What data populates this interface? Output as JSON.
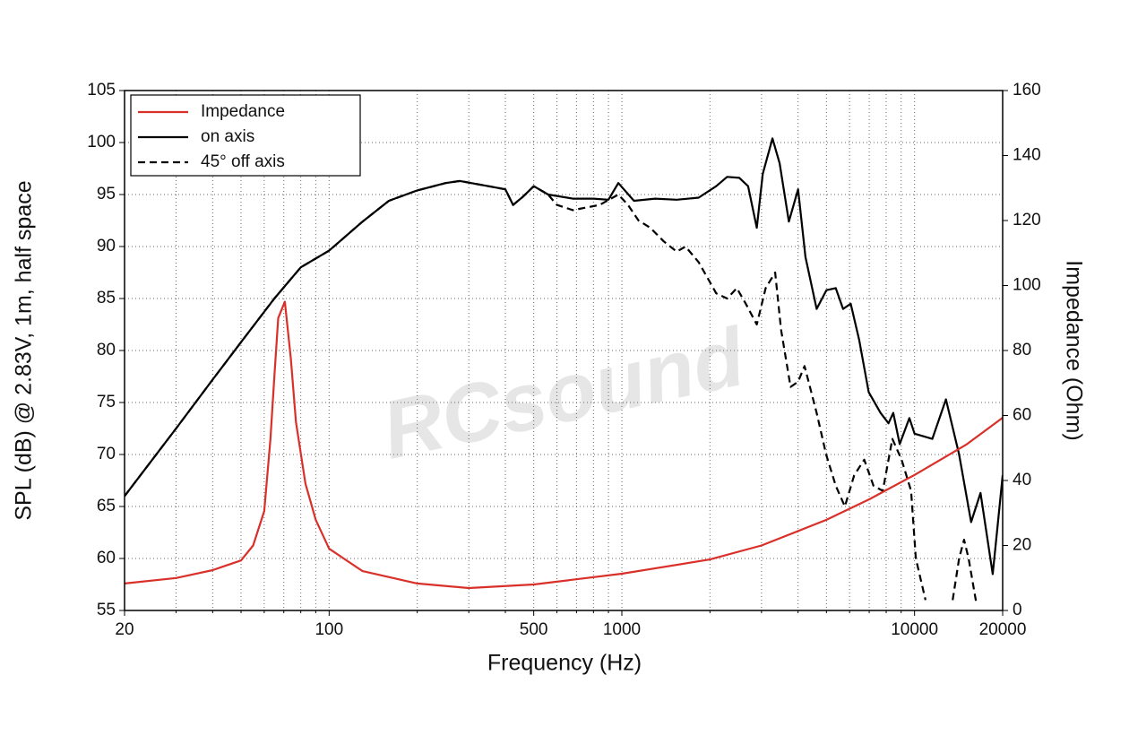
{
  "chart_data": {
    "type": "line",
    "xlabel": "Frequency (Hz)",
    "ylabel": "SPL (dB) @ 2.83V, 1m, half space",
    "y2label": "Impedance (Ohm)",
    "watermark": "RCsound",
    "xscale": "log",
    "xlim": [
      20,
      20000
    ],
    "xticks": [
      20,
      100,
      500,
      1000,
      10000,
      20000
    ],
    "xminorticks": [
      30,
      40,
      50,
      60,
      70,
      80,
      90,
      200,
      300,
      400,
      600,
      700,
      800,
      900,
      2000,
      3000,
      4000,
      5000,
      6000,
      7000,
      8000,
      9000
    ],
    "ylim": [
      55,
      105
    ],
    "yticks": [
      55,
      60,
      65,
      70,
      75,
      80,
      85,
      90,
      95,
      100,
      105
    ],
    "y2lim": [
      0,
      160
    ],
    "y2ticks": [
      0,
      20,
      40,
      60,
      80,
      100,
      120,
      140,
      160
    ],
    "grid": true,
    "legend": "upper left",
    "series": [
      {
        "name": "Impedance",
        "color": "#d9302a",
        "axis": "y2",
        "dash": false,
        "x": [
          20,
          30,
          40,
          50,
          55,
          60,
          63,
          65,
          67,
          70.6,
          74,
          77,
          83,
          90,
          100,
          130,
          200,
          300,
          500,
          1000,
          2000,
          3000,
          5000,
          7000,
          10000,
          15000,
          20000
        ],
        "values": [
          8.3,
          10,
          12.4,
          15.4,
          20,
          30.6,
          52.7,
          72,
          90,
          95,
          77.5,
          58,
          39,
          27.9,
          19,
          12.1,
          8.3,
          6.9,
          8,
          11.3,
          15.7,
          20,
          27.9,
          34.2,
          41.7,
          51,
          59.3
        ]
      },
      {
        "name": "on axis",
        "color": "#000000",
        "dash": false,
        "x": [
          20,
          30,
          40,
          50,
          65,
          80,
          100,
          130,
          160,
          200,
          250,
          280,
          350,
          400,
          425,
          460,
          500,
          560,
          680,
          800,
          900,
          973,
          1100,
          1300,
          1540,
          1830,
          2100,
          2290,
          2520,
          2700,
          2890,
          3030,
          3270,
          3460,
          3720,
          4000,
          4240,
          4630,
          5000,
          5380,
          5700,
          6050,
          6470,
          6970,
          7650,
          8150,
          8460,
          8900,
          9600,
          10000,
          11500,
          12800,
          14200,
          15600,
          16800,
          18500,
          19200,
          20000
        ],
        "values": [
          66,
          72.5,
          77.2,
          80.8,
          85,
          88,
          89.6,
          92.4,
          94.4,
          95.4,
          96.1,
          96.3,
          95.8,
          95.5,
          94,
          94.8,
          95.8,
          95,
          94.6,
          94.6,
          94.5,
          96.1,
          94.4,
          94.6,
          94.5,
          94.7,
          95.8,
          96.7,
          96.6,
          95.8,
          91.8,
          97,
          100.4,
          98,
          92.4,
          95.5,
          89,
          84,
          85.8,
          86,
          84,
          84.5,
          81,
          76,
          74,
          73,
          74,
          71,
          73.5,
          72,
          71.5,
          75.3,
          70,
          63.5,
          66.3,
          58.5,
          63,
          68
        ]
      },
      {
        "name": "45° off axis",
        "color": "#000000",
        "dash": true,
        "x": [
          20,
          30,
          40,
          50,
          65,
          80,
          100,
          130,
          160,
          200,
          250,
          280,
          350,
          400,
          425,
          460,
          500,
          560,
          600,
          680,
          840,
          973,
          1050,
          1140,
          1250,
          1390,
          1540,
          1650,
          1830,
          2100,
          2290,
          2470,
          2650,
          2890,
          3100,
          3340,
          3500,
          3770,
          4000,
          4210,
          4630,
          4990,
          5380,
          5780,
          6220,
          6730,
          7240,
          7790,
          8400,
          9030,
          9730,
          10100,
          10900,
          12000,
          13500,
          14200,
          14760,
          15300,
          16300
        ],
        "values": [
          66,
          72.5,
          77.2,
          80.8,
          85,
          88,
          89.6,
          92.4,
          94.4,
          95.4,
          96.1,
          96.3,
          95.8,
          95.5,
          94,
          94.8,
          95.8,
          95,
          94,
          93.5,
          94,
          95,
          94,
          92.5,
          91.8,
          90.5,
          89.5,
          90,
          88.5,
          85.5,
          85,
          86,
          84.5,
          82.5,
          86,
          87.5,
          82,
          76.5,
          77,
          78.5,
          74,
          70,
          67,
          65,
          68,
          69.5,
          67,
          66.5,
          71.5,
          69.5,
          66.5,
          60,
          56,
          null,
          56,
          60,
          61.8,
          60,
          55.5
        ]
      }
    ]
  }
}
